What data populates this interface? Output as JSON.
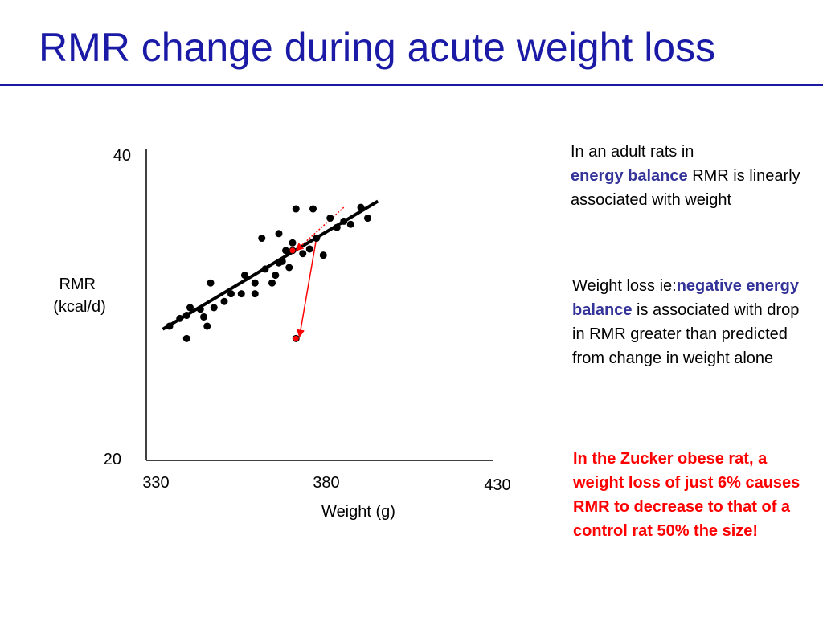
{
  "title": "RMR change during acute weight loss",
  "notes": {
    "note1_pre": "In an adult rats in",
    "note1_em": "energy balance",
    "note1_post": "RMR is linearly associated with weight",
    "note2_pre": "Weight loss ie:",
    "note2_em": "negative energy balance",
    "note2_post": "is associated with drop in RMR greater than predicted from change in weight alone",
    "note3": "In the Zucker obese rat, a weight loss of just 6% causes RMR to decrease to that of a control rat 50% the size!"
  },
  "colors": {
    "title": "#1a1aa6",
    "emphasis": "#333399",
    "highlight": "#ff0000",
    "points": "#000000"
  },
  "chart_data": {
    "type": "scatter",
    "xlabel": "Weight (g)",
    "ylabel": "RMR\n(kcal/d)",
    "x_ticks": [
      330,
      380,
      430
    ],
    "y_ticks": [
      20,
      40
    ],
    "xlim": [
      330,
      430
    ],
    "ylim": [
      20,
      40
    ],
    "grid": false,
    "legend": "none",
    "series": [
      {
        "points": [
          [
            334,
            28.7
          ],
          [
            337,
            29.2
          ],
          [
            339,
            29.4
          ],
          [
            339,
            27.9
          ],
          [
            340,
            29.9
          ],
          [
            343,
            29.8
          ],
          [
            344,
            29.3
          ],
          [
            345,
            28.7
          ],
          [
            346,
            31.5
          ],
          [
            347,
            29.9
          ],
          [
            350,
            30.3
          ],
          [
            352,
            30.8
          ],
          [
            355,
            30.8
          ],
          [
            356,
            32.0
          ],
          [
            359,
            31.5
          ],
          [
            359,
            30.8
          ],
          [
            361,
            34.4
          ],
          [
            362,
            32.4
          ],
          [
            364,
            31.5
          ],
          [
            365,
            32.0
          ],
          [
            366,
            34.7
          ],
          [
            366,
            32.8
          ],
          [
            367,
            32.9
          ],
          [
            368,
            33.6
          ],
          [
            369,
            32.5
          ],
          [
            370,
            34.1
          ],
          [
            371,
            36.3
          ],
          [
            373,
            33.4
          ],
          [
            375,
            33.7
          ],
          [
            376,
            36.3
          ],
          [
            377,
            34.4
          ],
          [
            379,
            33.3
          ],
          [
            381,
            35.7
          ],
          [
            383,
            35.1
          ],
          [
            385,
            35.5
          ],
          [
            387,
            35.3
          ],
          [
            390,
            36.4
          ],
          [
            392,
            35.7
          ]
        ]
      },
      {
        "color": "#ff0000",
        "points": [
          [
            370,
            33.6
          ],
          [
            371,
            27.9
          ]
        ]
      }
    ],
    "fit_line": {
      "x": [
        332,
        395
      ],
      "y": [
        28.5,
        36.8
      ]
    },
    "arrows": [
      {
        "from": [
          385,
          36.4
        ],
        "to": [
          371,
          33.6
        ],
        "style": "dotted"
      },
      {
        "from": [
          377,
          34.4
        ],
        "to": [
          372,
          28.0
        ],
        "style": "solid"
      }
    ]
  }
}
